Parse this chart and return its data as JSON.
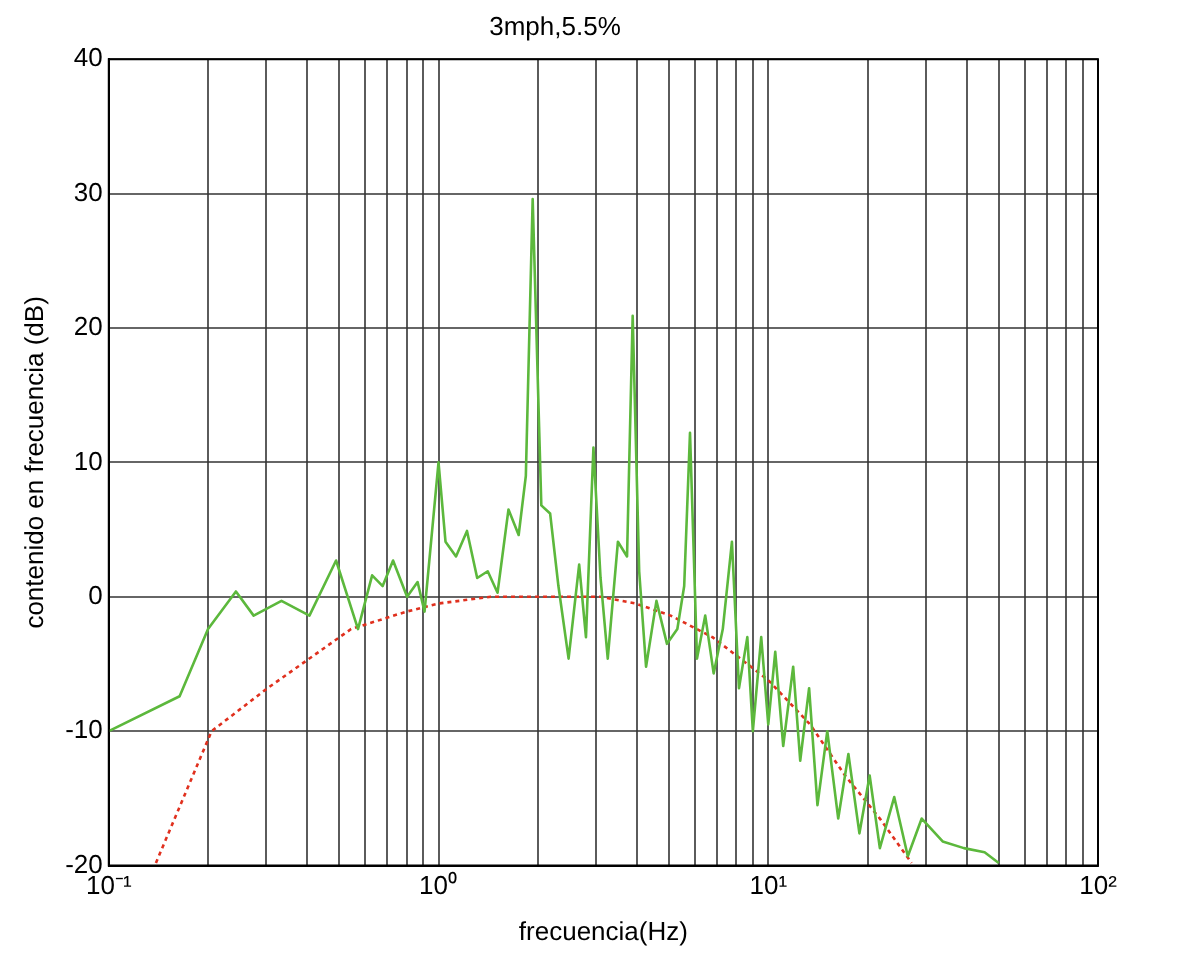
{
  "chart_data": {
    "type": "line",
    "title": "3mph,5.5%",
    "xlabel": "frecuencia(Hz)",
    "ylabel": "contenido en frecuencia (dB)",
    "log": "x",
    "grid": true,
    "legend": false,
    "marker": "none",
    "xlim": [
      0.1,
      100
    ],
    "xticks": [
      {
        "value": 0.1,
        "label": "10⁻¹"
      },
      {
        "value": 0.2,
        "label": null
      },
      {
        "value": 0.3,
        "label": null
      },
      {
        "value": 0.4,
        "label": null
      },
      {
        "value": 0.5,
        "label": null
      },
      {
        "value": 0.6,
        "label": null
      },
      {
        "value": 0.7,
        "label": null
      },
      {
        "value": 0.8,
        "label": null
      },
      {
        "value": 0.9,
        "label": null
      },
      {
        "value": 1,
        "label": "10⁰"
      },
      {
        "value": 2,
        "label": null
      },
      {
        "value": 3,
        "label": null
      },
      {
        "value": 4,
        "label": null
      },
      {
        "value": 5,
        "label": null
      },
      {
        "value": 6,
        "label": null
      },
      {
        "value": 7,
        "label": null
      },
      {
        "value": 8,
        "label": null
      },
      {
        "value": 9,
        "label": null
      },
      {
        "value": 10,
        "label": "10¹"
      },
      {
        "value": 20,
        "label": null
      },
      {
        "value": 30,
        "label": null
      },
      {
        "value": 40,
        "label": null
      },
      {
        "value": 50,
        "label": null
      },
      {
        "value": 60,
        "label": null
      },
      {
        "value": 70,
        "label": null
      },
      {
        "value": 80,
        "label": null
      },
      {
        "value": 90,
        "label": null
      },
      {
        "value": 100,
        "label": "10²"
      }
    ],
    "ylim": [
      -20,
      40
    ],
    "yticks": [
      -20,
      -10,
      0,
      10,
      20,
      30,
      40
    ],
    "series": [
      {
        "color": "#5cb83c",
        "line_style": "solid",
        "x": [
          0.1,
          0.164,
          0.2,
          0.243,
          0.275,
          0.334,
          0.406,
          0.489,
          0.57,
          0.629,
          0.677,
          0.728,
          0.803,
          0.864,
          0.907,
          1.0,
          1.05,
          1.13,
          1.22,
          1.31,
          1.41,
          1.51,
          1.63,
          1.75,
          1.84,
          1.93,
          2.05,
          2.18,
          2.31,
          2.48,
          2.67,
          2.8,
          2.95,
          3.1,
          3.26,
          3.5,
          3.73,
          3.88,
          4.06,
          4.26,
          4.58,
          4.93,
          5.3,
          5.56,
          5.79,
          6.08,
          6.44,
          6.83,
          7.28,
          7.76,
          8.15,
          8.64,
          8.98,
          9.52,
          10,
          10.5,
          11.1,
          11.9,
          12.5,
          13.3,
          14.1,
          15.1,
          16.3,
          17.5,
          18.9,
          20.3,
          21.8,
          24.1,
          26.5,
          29.2,
          33.8,
          39.2,
          45.3,
          50
        ],
        "values": [
          -10,
          -7.4,
          -2.4,
          0.4,
          -1.4,
          -0.3,
          -1.4,
          2.7,
          -2.4,
          1.6,
          0.8,
          2.7,
          0,
          1.1,
          -1.1,
          10,
          4.1,
          3,
          4.9,
          1.4,
          1.9,
          0.3,
          6.5,
          4.6,
          9,
          29.6,
          6.8,
          6.2,
          0.8,
          -4.6,
          2.4,
          -3,
          11.1,
          1.4,
          -4.6,
          4.1,
          3,
          20.9,
          1.9,
          -5.2,
          -0.3,
          -3.5,
          -2.4,
          0.8,
          12.2,
          -4.6,
          -1.4,
          -5.7,
          -2.4,
          4.1,
          -6.8,
          -3,
          -10,
          -3,
          -9.5,
          -4.1,
          -11.1,
          -5.2,
          -12.2,
          -6.8,
          -15.5,
          -10,
          -16.5,
          -11.7,
          -17.6,
          -13.3,
          -18.7,
          -14.9,
          -19.3,
          -16.5,
          -18.2,
          -18.7,
          -19,
          -19.8
        ]
      },
      {
        "color": "#e0301e",
        "line_style": "dotted",
        "x": [
          0.139,
          0.205,
          0.303,
          0.543,
          0.8,
          1,
          1.44,
          1.9,
          3.1,
          3.96,
          5.06,
          6.77,
          8.23,
          10,
          13.4,
          17.1,
          21.8,
          27.2
        ],
        "values": [
          -19.8,
          -10,
          -6.8,
          -2.4,
          -1.1,
          -0.5,
          0,
          0,
          0,
          -0.5,
          -1.4,
          -3,
          -4.6,
          -6.2,
          -9.5,
          -13.3,
          -16.5,
          -19.8
        ]
      }
    ]
  }
}
